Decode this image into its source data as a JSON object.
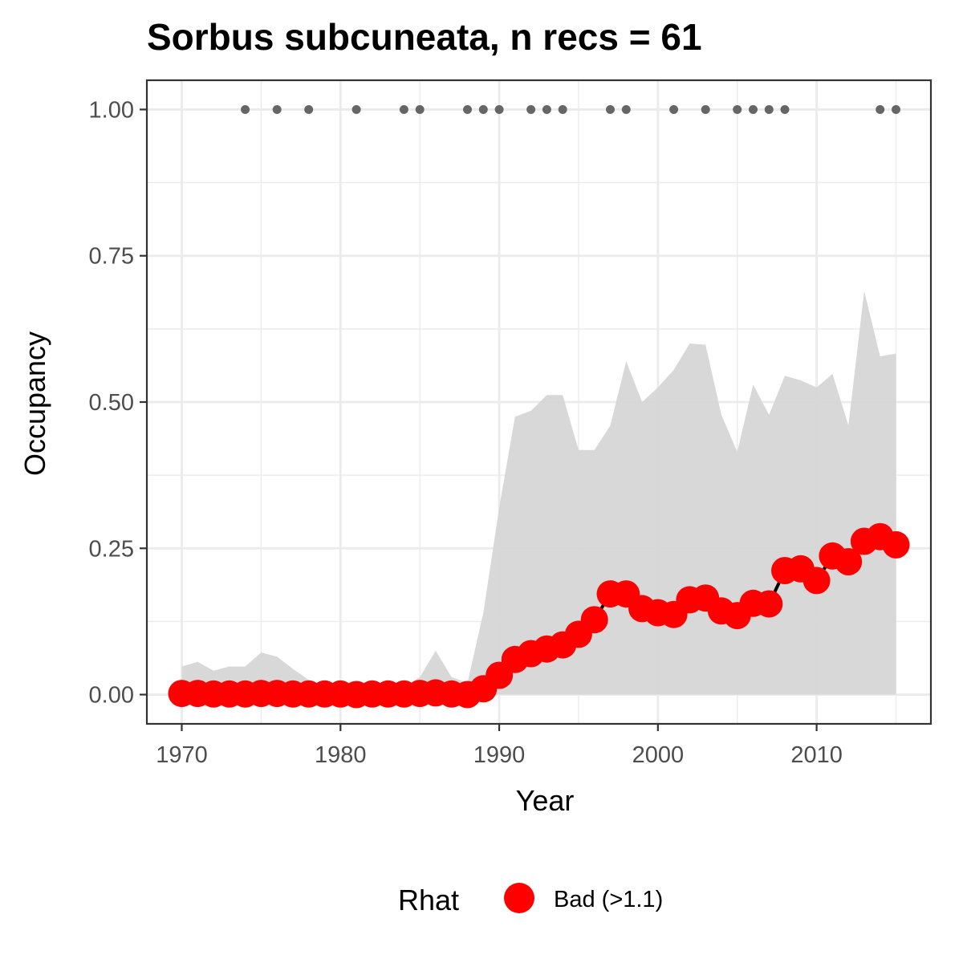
{
  "chart_data": {
    "type": "line",
    "title": "Sorbus subcuneata, n recs = 61",
    "xlabel": "Year",
    "ylabel": "Occupancy",
    "xlim": [
      1967.8,
      2017.2
    ],
    "ylim": [
      -0.05,
      1.05
    ],
    "x_ticks": [
      1970,
      1980,
      1990,
      2000,
      2010
    ],
    "x_tick_labels": [
      "1970",
      "1980",
      "1990",
      "2000",
      "2010"
    ],
    "y_ticks": [
      0,
      0.25,
      0.5,
      0.75,
      1.0
    ],
    "y_tick_labels": [
      "0.00",
      "0.25",
      "0.50",
      "0.75",
      "1.00"
    ],
    "grid": true,
    "legend": {
      "title": "Rhat",
      "placement": "bottom",
      "entries": [
        {
          "label": "Bad (>1.1)",
          "color": "#ff0000"
        }
      ]
    },
    "colors": {
      "ribbon": "#d6d6d6",
      "line": "#000000",
      "points": "#ff0000",
      "records": "#666666",
      "grid": "#ebebeb",
      "border": "#333333"
    },
    "x": [
      1970,
      1971,
      1972,
      1973,
      1974,
      1975,
      1976,
      1977,
      1978,
      1979,
      1980,
      1981,
      1982,
      1983,
      1984,
      1985,
      1986,
      1987,
      1988,
      1989,
      1990,
      1991,
      1992,
      1993,
      1994,
      1995,
      1996,
      1997,
      1998,
      1999,
      2000,
      2001,
      2002,
      2003,
      2004,
      2005,
      2006,
      2007,
      2008,
      2009,
      2010,
      2011,
      2012,
      2013,
      2014,
      2015
    ],
    "series": [
      {
        "type": "line",
        "values": [
          0.002,
          0.002,
          0.001,
          0.001,
          0.001,
          0.002,
          0.002,
          0.001,
          0.001,
          0.001,
          0.001,
          0.0,
          0.001,
          0.001,
          0.001,
          0.002,
          0.003,
          0.001,
          0.0,
          0.01,
          0.033,
          0.06,
          0.07,
          0.078,
          0.085,
          0.103,
          0.128,
          0.172,
          0.172,
          0.147,
          0.14,
          0.137,
          0.162,
          0.165,
          0.143,
          0.135,
          0.156,
          0.155,
          0.212,
          0.215,
          0.195,
          0.237,
          0.227,
          0.262,
          0.27,
          0.256
        ]
      }
    ],
    "ribbon": {
      "lower": [
        0,
        0,
        0,
        0,
        0,
        0,
        0,
        0,
        0,
        0,
        0,
        0,
        0,
        0,
        0,
        0,
        0,
        0,
        0,
        0,
        0,
        0,
        0,
        0,
        0,
        0,
        0,
        0,
        0,
        0,
        0,
        0,
        0,
        0,
        0,
        0,
        0,
        0,
        0,
        0,
        0,
        0,
        0,
        0,
        0,
        0
      ],
      "upper": [
        0.048,
        0.056,
        0.041,
        0.048,
        0.048,
        0.072,
        0.065,
        0.044,
        0.025,
        0.012,
        0.01,
        0.008,
        0.005,
        0.008,
        0.012,
        0.03,
        0.075,
        0.03,
        0.02,
        0.14,
        0.32,
        0.475,
        0.485,
        0.512,
        0.512,
        0.418,
        0.418,
        0.46,
        0.57,
        0.5,
        0.525,
        0.555,
        0.6,
        0.598,
        0.478,
        0.415,
        0.53,
        0.478,
        0.545,
        0.537,
        0.525,
        0.548,
        0.46,
        0.69,
        0.578,
        0.583
      ]
    },
    "records": {
      "y": 1.0,
      "x": [
        1974,
        1976,
        1978,
        1981,
        1984,
        1985,
        1988,
        1989,
        1990,
        1992,
        1993,
        1994,
        1997,
        1998,
        2001,
        2003,
        2005,
        2006,
        2007,
        2008,
        2014,
        2015
      ]
    }
  }
}
